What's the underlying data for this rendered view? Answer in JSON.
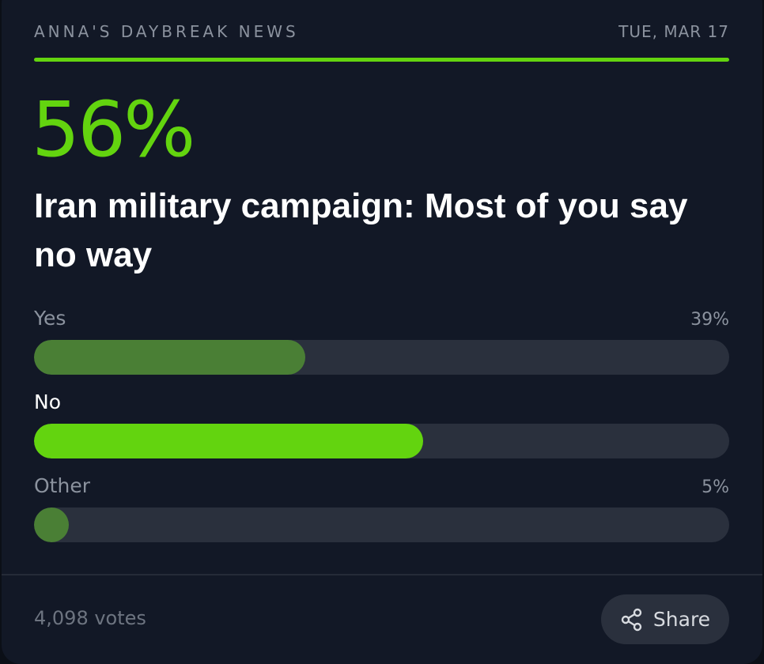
{
  "header": {
    "brand": "ANNA'S DAYBREAK NEWS",
    "date": "TUE, MAR 17"
  },
  "stat": "56%",
  "headline": "Iran military campaign: Most of you say no way",
  "options": [
    {
      "label": "Yes",
      "value": 39,
      "value_label": "39%",
      "color": "#4a7f35",
      "text_color": "#8b929e"
    },
    {
      "label": "No",
      "value": 56,
      "color": "#63d40f",
      "text_color": "#ffffff"
    },
    {
      "label": "Other",
      "value": 5,
      "value_label": "5%",
      "color": "#4a7f35",
      "text_color": "#8b929e"
    }
  ],
  "footer": {
    "votes": "4,098 votes",
    "share": "Share"
  }
}
